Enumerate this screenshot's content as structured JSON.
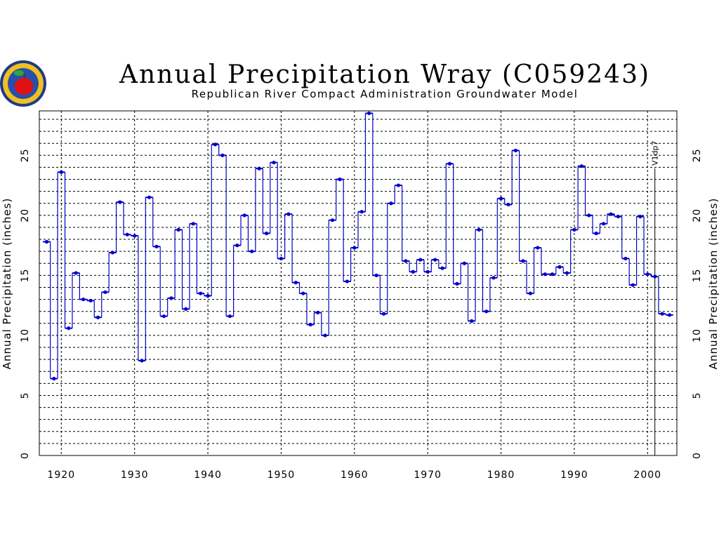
{
  "chart_data": {
    "type": "line",
    "title": "Annual Precipitation Wray (C059243)",
    "subtitle": "Republican River Compact Administration Groundwater Model",
    "ylabel": "Annual Precipitation (inches)",
    "ylabel_right": "Annual Precipitation (inches)",
    "xlabel": "",
    "xlim": [
      1917,
      2004
    ],
    "ylim": [
      0,
      28.7
    ],
    "x_ticks": [
      1920,
      1930,
      1940,
      1950,
      1960,
      1970,
      1980,
      1990,
      2000
    ],
    "x_tick_labels": [
      "1920",
      "1930",
      "1940",
      "1950",
      "1960",
      "1970",
      "1980",
      "1990",
      "2000"
    ],
    "y_ticks": [
      0,
      5,
      10,
      15,
      20,
      25
    ],
    "y_tick_labels": [
      "0",
      "5",
      "10",
      "15",
      "20",
      "25"
    ],
    "grid": true,
    "annotation": {
      "text": "V1dp7",
      "x": 2001
    },
    "series_color": "#0000cc",
    "series": [
      {
        "x": [
          1918,
          1919,
          1920,
          1921,
          1922,
          1923,
          1924,
          1925,
          1926,
          1927,
          1928,
          1929,
          1930,
          1931,
          1932,
          1933,
          1934,
          1935,
          1936,
          1937,
          1938,
          1939,
          1940,
          1941,
          1942,
          1943,
          1944,
          1945,
          1946,
          1947,
          1948,
          1949,
          1950,
          1951,
          1952,
          1953,
          1954,
          1955,
          1956,
          1957,
          1958,
          1959,
          1960,
          1961,
          1962,
          1963,
          1964,
          1965,
          1966,
          1967,
          1968,
          1969,
          1970,
          1971,
          1972,
          1973,
          1974,
          1975,
          1976,
          1977,
          1978,
          1979,
          1980,
          1981,
          1982,
          1983,
          1984,
          1985,
          1986,
          1987,
          1988,
          1989,
          1990,
          1991,
          1992,
          1993,
          1994,
          1995,
          1996,
          1997,
          1998,
          1999,
          2000,
          2001,
          2002,
          2003
        ],
        "values": [
          17.8,
          6.4,
          23.6,
          10.6,
          15.2,
          13.0,
          12.9,
          11.5,
          13.6,
          16.9,
          21.1,
          18.4,
          18.3,
          7.9,
          21.5,
          17.4,
          11.6,
          13.1,
          18.8,
          12.2,
          19.3,
          13.5,
          13.3,
          25.9,
          25.0,
          11.6,
          17.5,
          20.0,
          17.0,
          23.9,
          18.5,
          24.4,
          16.4,
          20.1,
          14.4,
          13.5,
          10.9,
          11.9,
          10.0,
          19.6,
          23.0,
          14.5,
          17.3,
          20.3,
          28.5,
          15.0,
          11.8,
          21.0,
          22.5,
          16.2,
          15.3,
          16.3,
          15.3,
          16.3,
          15.6,
          24.3,
          14.3,
          16.0,
          11.2,
          18.8,
          12.0,
          14.8,
          21.4,
          20.9,
          25.4,
          16.2,
          13.5,
          17.3,
          15.1,
          15.1,
          15.7,
          15.2,
          18.8,
          24.1,
          20.0,
          18.5,
          19.3,
          20.1,
          19.9,
          16.4,
          14.2,
          19.9,
          15.1,
          14.9,
          11.8,
          11.7
        ]
      }
    ]
  }
}
